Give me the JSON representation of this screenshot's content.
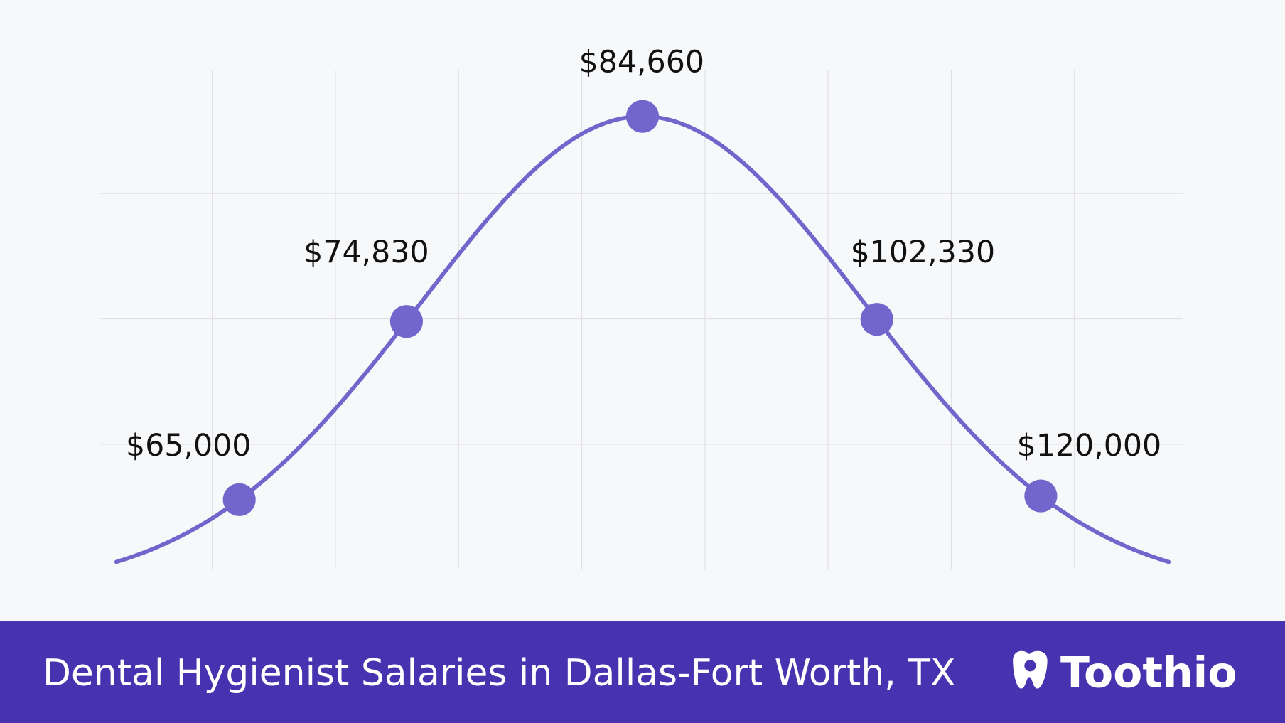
{
  "chart_data": {
    "type": "bell-curve",
    "title": "Dental Hygienist Salaries in Dallas-Fort Worth, TX",
    "values": [
      65000,
      74830,
      84660,
      102330,
      120000
    ],
    "value_labels": [
      "$65,000",
      "$74,830",
      "$84,660",
      "$102,330",
      "$120,000"
    ],
    "color": "#7365cb",
    "grid": true
  },
  "brand": "Toothio"
}
